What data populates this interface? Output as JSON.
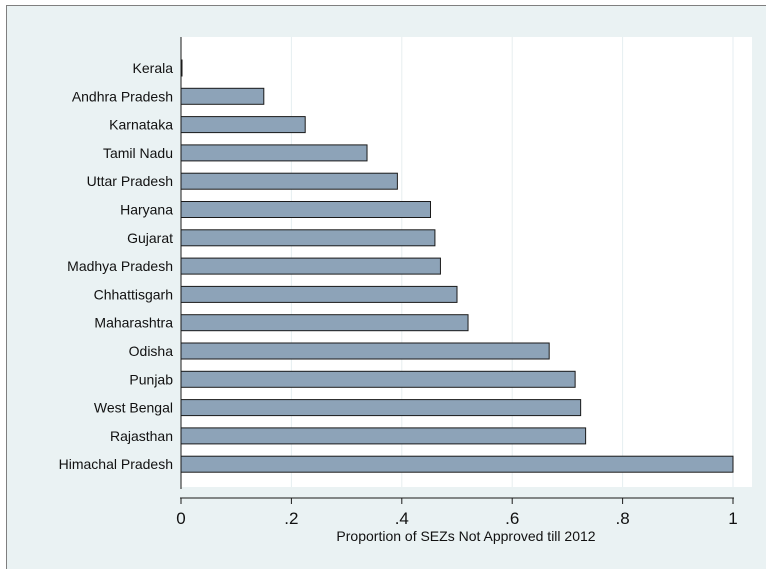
{
  "chart_data": {
    "type": "bar",
    "orientation": "horizontal",
    "categories": [
      "Kerala",
      "Andhra Pradesh",
      "Karnataka",
      "Tamil Nadu",
      "Uttar Pradesh",
      "Haryana",
      "Gujarat",
      "Madhya Pradesh",
      "Chhattisgarh",
      "Maharashtra",
      "Odisha",
      "Punjab",
      "West Bengal",
      "Rajasthan",
      "Himachal Pradesh"
    ],
    "values": [
      0.0,
      0.15,
      0.225,
      0.337,
      0.392,
      0.452,
      0.46,
      0.47,
      0.5,
      0.52,
      0.667,
      0.714,
      0.724,
      0.733,
      1.0
    ],
    "xlabel": "Proportion of SEZs Not Approved till 2012",
    "ylabel": "",
    "xlim": [
      0,
      1
    ],
    "xticks": [
      0,
      0.2,
      0.4,
      0.6,
      0.8,
      1
    ],
    "xtick_labels": [
      "0",
      ".2",
      ".4",
      ".6",
      ".8",
      "1"
    ],
    "grid": true,
    "colors": {
      "background": "#eaf2f3",
      "plot_background": "#ffffff",
      "bar_fill": "#8da3b8",
      "bar_stroke": "#1a1a1a",
      "grid": "#e6eef0"
    }
  }
}
